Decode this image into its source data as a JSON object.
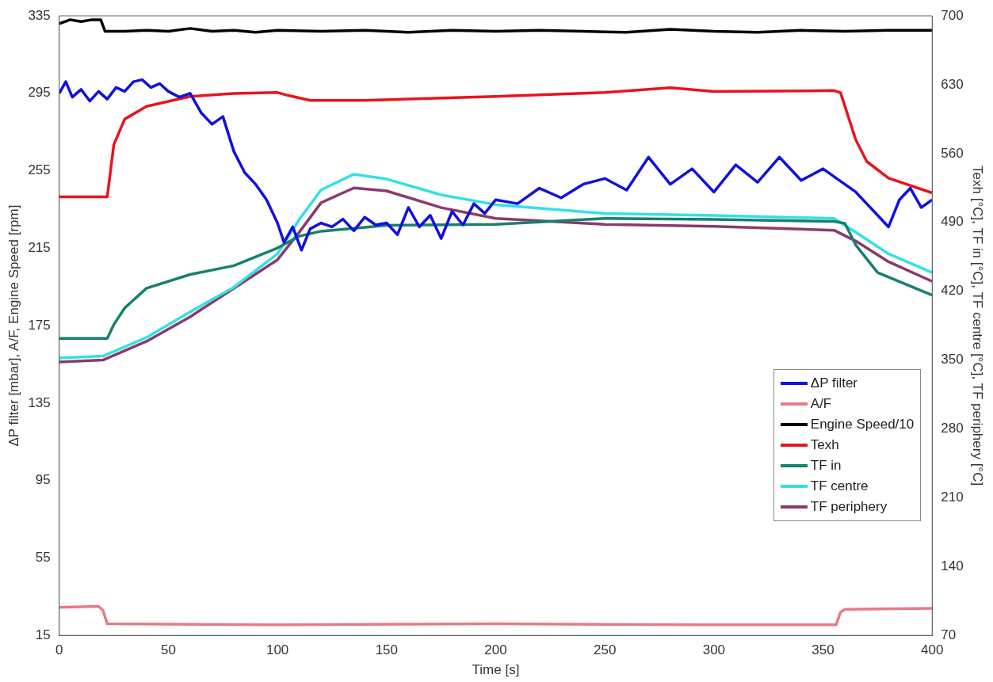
{
  "chart_data": {
    "type": "line",
    "xlabel": "Time [s]",
    "ylabel": "ΔP filter [mbar], A/F, Engine Speed [rpm]",
    "y2label": "Texh [°C], TF in [°C], TF centre [°C], TF periphery [°C]",
    "xlim": [
      0,
      400
    ],
    "xticks": [
      0,
      50,
      100,
      150,
      200,
      250,
      300,
      350,
      400
    ],
    "ylim": [
      15,
      335
    ],
    "yticks": [
      15,
      55,
      95,
      135,
      175,
      215,
      255,
      295,
      335
    ],
    "y2lim": [
      70,
      700
    ],
    "y2ticks": [
      70,
      140,
      210,
      280,
      350,
      420,
      490,
      560,
      630,
      700
    ],
    "grid": false,
    "legend": "right",
    "series": [
      {
        "name": "ΔP filter",
        "color": "#1010e0",
        "x": [
          0,
          3,
          6,
          10,
          14,
          18,
          22,
          26,
          30,
          34,
          38,
          42,
          46,
          50,
          55,
          60,
          65,
          70,
          75,
          80,
          85,
          90,
          95,
          100,
          103,
          107,
          111,
          115,
          120,
          125,
          130,
          135,
          140,
          145,
          150,
          155,
          160,
          165,
          170,
          175,
          180,
          185,
          190,
          195,
          200,
          210,
          220,
          230,
          240,
          250,
          260,
          270,
          280,
          290,
          300,
          310,
          320,
          330,
          340,
          350,
          360,
          365,
          370,
          375,
          380,
          385,
          390,
          395,
          400
        ],
        "values": [
          295,
          301,
          293,
          297,
          291,
          296,
          292,
          298,
          296,
          301,
          302,
          298,
          300,
          296,
          293,
          295,
          285,
          279,
          283,
          265,
          254,
          248,
          240,
          228,
          218,
          226,
          214,
          225,
          228,
          226,
          230,
          224,
          231,
          227,
          228,
          222,
          236,
          226,
          232,
          220,
          234,
          227,
          238,
          233,
          240,
          238,
          246,
          241,
          248,
          251,
          245,
          262,
          248,
          256,
          244,
          258,
          249,
          262,
          250,
          256,
          248,
          244,
          238,
          232,
          226,
          240,
          246,
          236,
          240
        ]
      },
      {
        "name": "A/F",
        "color": "#e87a88",
        "x": [
          0,
          18,
          20,
          22,
          100,
          200,
          300,
          356,
          358,
          360,
          400
        ],
        "values": [
          29.5,
          30,
          28,
          21,
          20.5,
          21,
          20.5,
          20.5,
          27,
          28.5,
          29
        ]
      },
      {
        "name": "Engine Speed/10",
        "color": "#000000",
        "x": [
          0,
          5,
          10,
          15,
          19,
          21,
          30,
          40,
          50,
          60,
          70,
          80,
          90,
          100,
          120,
          140,
          160,
          180,
          200,
          220,
          240,
          260,
          280,
          300,
          320,
          340,
          360,
          380,
          400
        ],
        "values": [
          331,
          333,
          332,
          333,
          333,
          327,
          327,
          327.5,
          327,
          328.5,
          327,
          327.5,
          326.5,
          327.5,
          327,
          327.5,
          326.5,
          327.5,
          327,
          327.5,
          327,
          326.5,
          328,
          327,
          326.5,
          327.5,
          327,
          327.5,
          327.5
        ]
      },
      {
        "name": "Texh",
        "color": "#e8141c",
        "axis": "y2",
        "x": [
          0,
          22,
          25,
          30,
          40,
          60,
          80,
          100,
          105,
          115,
          140,
          200,
          250,
          280,
          300,
          355,
          358,
          365,
          370,
          380,
          400
        ],
        "values": [
          516,
          516,
          569,
          595,
          608,
          618,
          621,
          622,
          619,
          614,
          614,
          618,
          622,
          627,
          623,
          624,
          622,
          574,
          552,
          535,
          520
        ]
      },
      {
        "name": "TF in",
        "color": "#17806d",
        "axis": "y2",
        "x": [
          0,
          22,
          25,
          30,
          40,
          60,
          80,
          100,
          110,
          120,
          150,
          200,
          250,
          300,
          355,
          360,
          365,
          375,
          400
        ],
        "values": [
          372,
          372,
          386,
          403,
          423,
          437,
          446,
          464,
          476,
          481,
          487,
          488,
          494,
          493,
          491,
          489,
          467,
          439,
          416
        ]
      },
      {
        "name": "TF centre",
        "color": "#33e0e6",
        "axis": "y2",
        "x": [
          0,
          20,
          40,
          60,
          80,
          100,
          110,
          120,
          135,
          150,
          175,
          200,
          250,
          300,
          355,
          365,
          380,
          400
        ],
        "values": [
          352,
          354,
          373,
          399,
          424,
          458,
          493,
          523,
          539,
          534,
          518,
          508,
          499,
          497,
          494,
          480,
          458,
          439
        ]
      },
      {
        "name": "TF periphery",
        "color": "#8b3a6b",
        "axis": "y2",
        "x": [
          0,
          20,
          40,
          60,
          80,
          100,
          110,
          120,
          135,
          150,
          175,
          200,
          250,
          300,
          355,
          365,
          380,
          400
        ],
        "values": [
          348,
          350,
          369,
          394,
          423,
          452,
          480,
          510,
          525,
          522,
          505,
          494,
          488,
          486,
          482,
          471,
          450,
          430
        ]
      }
    ]
  }
}
